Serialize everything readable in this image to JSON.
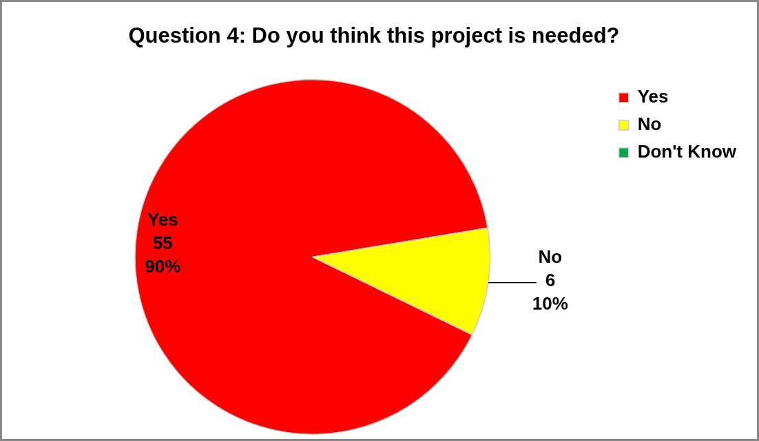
{
  "chart_data": {
    "type": "pie",
    "title": "Question 4:  Do you think this project is needed?",
    "categories": [
      "Yes",
      "No",
      "Don't Know"
    ],
    "values": [
      55,
      6,
      0
    ],
    "colors": [
      "#ff0000",
      "#ffff00",
      "#00a650"
    ],
    "value_labels": [
      "55\n90%",
      "6\n10%",
      null
    ],
    "legend": "top right"
  }
}
